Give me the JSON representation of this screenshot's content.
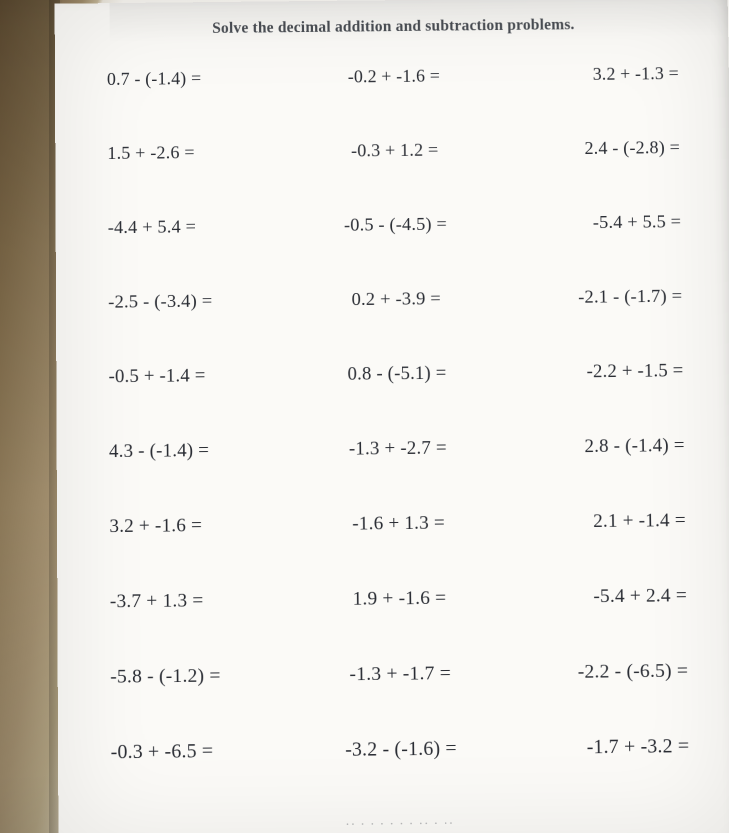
{
  "title": "Solve the decimal addition and subtraction problems.",
  "title_color": "#4b4f55",
  "title_fontsize": 15.5,
  "text_color": "#2a2d34",
  "paper_bg": "#fbfaf7",
  "desk_gradient": [
    "#6a5538",
    "#7c6848",
    "#8f7c5c",
    "#a39070",
    "#b8a987",
    "#d2c7ac"
  ],
  "problem_fontsize_base": 18.5,
  "columns": 3,
  "rows": 10,
  "problems": [
    [
      "0.7 - (-1.4)  =",
      "-0.2 + -1.6  =",
      "3.2  +  -1.3  ="
    ],
    [
      "1.5  +  -2.6  =",
      "-0.3 + 1.2  =",
      "2.4 - (-2.8)  ="
    ],
    [
      "-4.4 + 5.4  =",
      "-0.5 - (-4.5)  =",
      "-5.4 + 5.5  ="
    ],
    [
      "-2.5 - (-3.4)  =",
      "0.2  +  -3.9  =",
      "-2.1 - (-1.7)  ="
    ],
    [
      "-0.5 + -1.4  =",
      "0.8 - (-5.1)  =",
      "-2.2 + -1.5  ="
    ],
    [
      "4.3 - (-1.4)  =",
      "-1.3 + -2.7  =",
      "2.8 - (-1.4)  ="
    ],
    [
      "3.2  +  -1.6  =",
      "-1.6 + 1.3  =",
      "2.1  +  -1.4  ="
    ],
    [
      "-3.7 + 1.3  =",
      "1.9  +  -1.6  =",
      "-5.4 + 2.4  ="
    ],
    [
      "-5.8 - (-1.2)  =",
      "-1.3 + -1.7  =",
      "-2.2 - (-6.5)  ="
    ],
    [
      "-0.3 + -6.5  =",
      "-3.2 - (-1.6)  =",
      "-1.7 + -3.2  ="
    ]
  ],
  "footer_scribble": "·· ·   · ·    · · ·     ·· ·   ··"
}
